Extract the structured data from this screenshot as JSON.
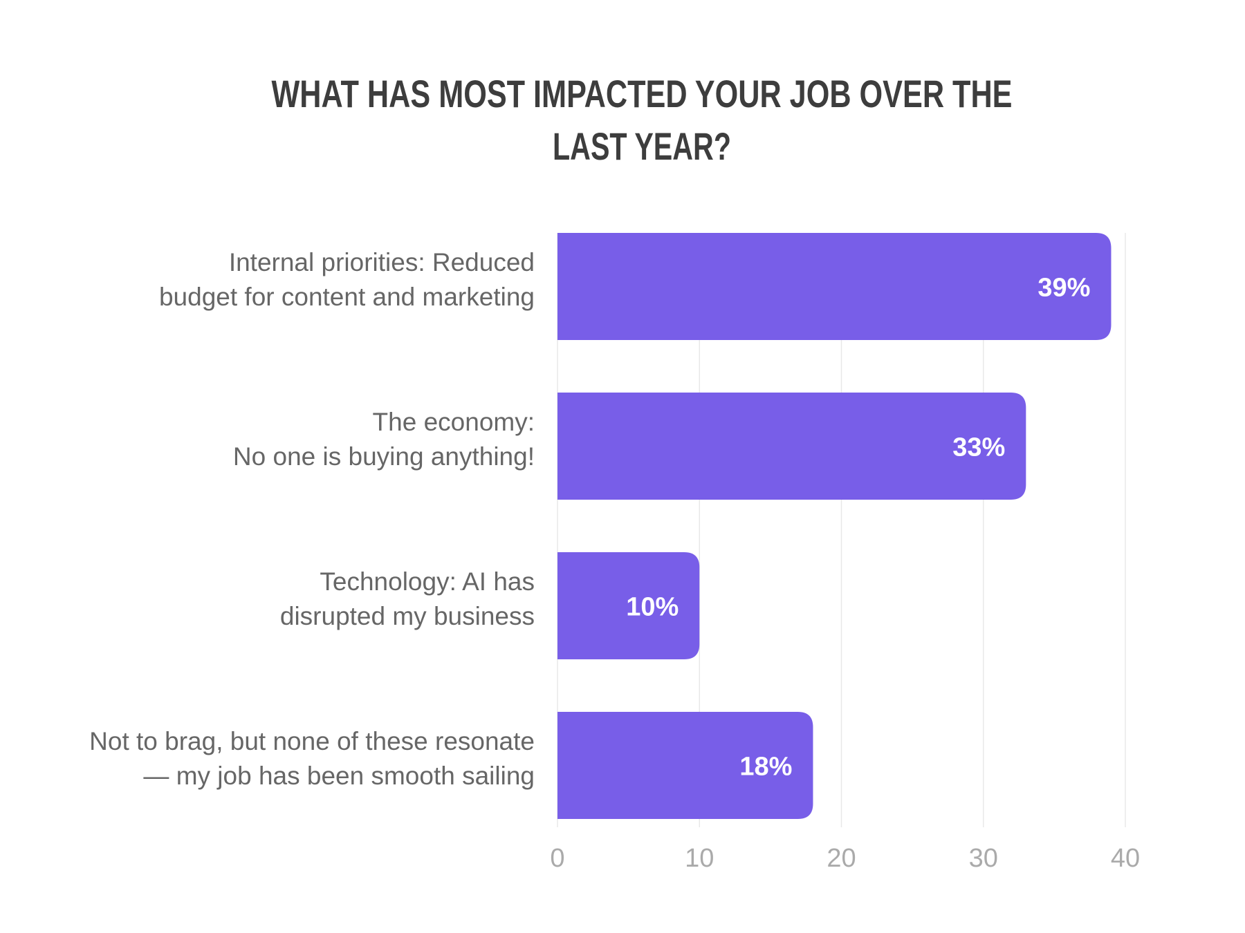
{
  "chart_data": {
    "type": "bar",
    "orientation": "horizontal",
    "title_lines": [
      "WHAT HAS MOST IMPACTED YOUR JOB OVER THE",
      "LAST YEAR?"
    ],
    "categories": [
      [
        "Internal priorities: Reduced",
        "budget for content and marketing"
      ],
      [
        "The economy:",
        "No one is buying anything!"
      ],
      [
        "Technology: AI has",
        "disrupted my business"
      ],
      [
        "Not to brag, but none of these resonate",
        "— my job has been smooth sailing"
      ]
    ],
    "values": [
      39,
      33,
      10,
      18
    ],
    "data_labels": [
      "39%",
      "33%",
      "10%",
      "18%"
    ],
    "xlim": [
      0,
      40
    ],
    "xticks": [
      "0",
      "10",
      "20",
      "30",
      "40"
    ],
    "grid": "vertical",
    "bar_color": "#785ee8",
    "xlabel": "",
    "ylabel": ""
  }
}
